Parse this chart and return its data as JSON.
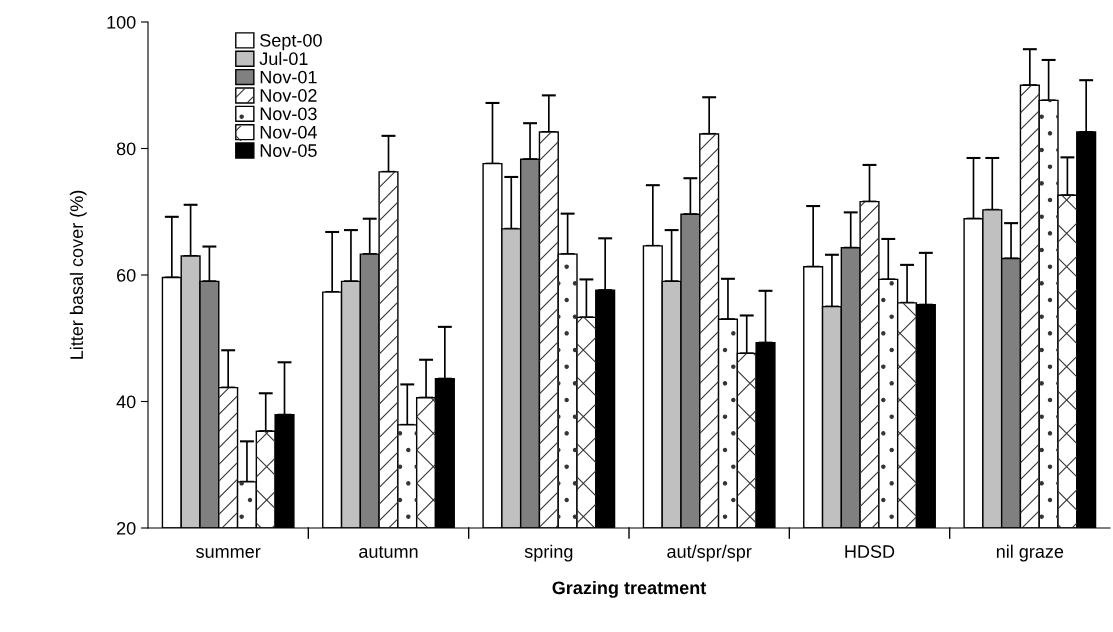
{
  "chart_data": {
    "type": "bar",
    "xlabel": "Grazing treatment",
    "ylabel": "Litter basal cover (%)",
    "categories": [
      "summer",
      "autumn",
      "spring",
      "aut/spr/spr",
      "HDSD",
      "nil graze"
    ],
    "ylim": [
      20,
      100
    ],
    "yticks": [
      20,
      40,
      60,
      80,
      100
    ],
    "grid": false,
    "legend": "top left",
    "series": [
      {
        "name": "Sept-00",
        "color": "#ffffff",
        "values": [
          59.6,
          57.3,
          77.6,
          64.6,
          61.3,
          68.9
        ],
        "errors": [
          [
            59.6,
            69.2
          ],
          [
            57.3,
            66.8
          ],
          [
            77.6,
            87.2
          ],
          [
            64.6,
            74.2
          ],
          [
            61.3,
            70.9
          ],
          [
            68.9,
            78.5
          ]
        ]
      },
      {
        "name": "Jul-01",
        "color": "#c0c0c0",
        "values": [
          63.0,
          59.0,
          67.3,
          59.0,
          55.0,
          70.3
        ],
        "errors": [
          [
            63.0,
            71.1
          ],
          [
            59.0,
            67.1
          ],
          [
            67.3,
            75.5
          ],
          [
            59.0,
            67.1
          ],
          [
            55.0,
            63.2
          ],
          [
            70.3,
            78.5
          ]
        ]
      },
      {
        "name": "Nov-01",
        "color": "#808080",
        "values": [
          59.0,
          63.3,
          78.3,
          69.6,
          64.3,
          62.6
        ],
        "errors": [
          [
            59.0,
            64.5
          ],
          [
            63.3,
            68.9
          ],
          [
            78.3,
            84.0
          ],
          [
            69.6,
            75.3
          ],
          [
            64.3,
            69.9
          ],
          [
            62.6,
            68.2
          ]
        ]
      },
      {
        "name": "Nov-02",
        "color": "#ffffff",
        "values": [
          42.2,
          76.3,
          82.6,
          82.3,
          71.6,
          90.0
        ],
        "errors": [
          [
            42.2,
            48.1
          ],
          [
            76.3,
            82.0
          ],
          [
            82.6,
            88.4
          ],
          [
            82.3,
            88.1
          ],
          [
            71.6,
            77.4
          ],
          [
            90.0,
            95.7
          ]
        ]
      },
      {
        "name": "Nov-03",
        "color": "#ffffff",
        "values": [
          27.3,
          36.3,
          63.3,
          53.0,
          59.3,
          87.6
        ],
        "errors": [
          [
            27.3,
            33.7
          ],
          [
            36.3,
            42.7
          ],
          [
            63.3,
            69.7
          ],
          [
            53.0,
            59.4
          ],
          [
            59.3,
            65.7
          ],
          [
            87.6,
            94.0
          ]
        ]
      },
      {
        "name": "Nov-04",
        "color": "#ffffff",
        "values": [
          35.3,
          40.6,
          53.3,
          47.6,
          55.6,
          72.6
        ],
        "errors": [
          [
            35.3,
            41.3
          ],
          [
            40.6,
            46.6
          ],
          [
            53.3,
            59.3
          ],
          [
            47.6,
            53.6
          ],
          [
            55.6,
            61.6
          ],
          [
            72.6,
            78.6
          ]
        ]
      },
      {
        "name": "Nov-05",
        "color": "#000000",
        "values": [
          37.9,
          43.6,
          57.6,
          49.3,
          55.3,
          82.6
        ],
        "errors": [
          [
            37.9,
            46.2
          ],
          [
            43.6,
            51.8
          ],
          [
            57.6,
            65.8
          ],
          [
            49.3,
            57.5
          ],
          [
            55.3,
            63.5
          ],
          [
            82.6,
            90.8
          ]
        ]
      }
    ]
  }
}
